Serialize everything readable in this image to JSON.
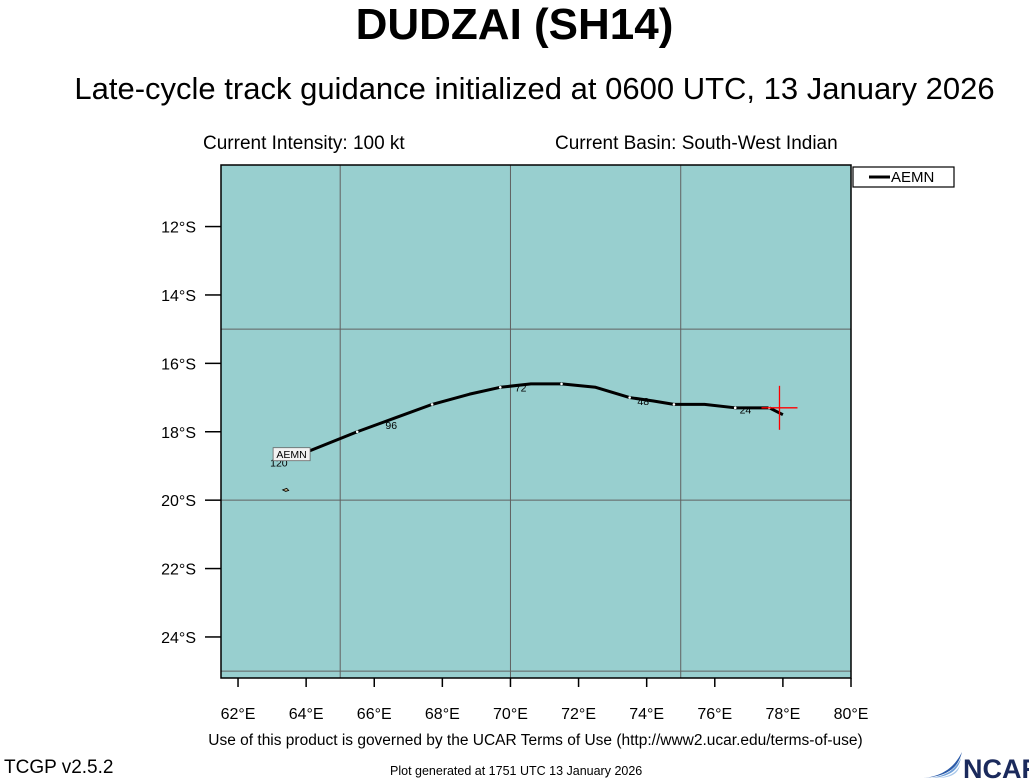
{
  "header": {
    "title": "DUDZAI (SH14)",
    "subtitle": "Late-cycle track guidance initialized at 0600 UTC, 13 January 2026",
    "intensity": "Current Intensity: 100 kt",
    "basin": "Current Basin: South-West Indian"
  },
  "footer": {
    "terms": "Use of this product is governed by the UCAR Terms of Use (http://www2.ucar.edu/terms-of-use)",
    "version": "TCGP v2.5.2",
    "generated": "Plot generated at 1751 UTC   13 January 2026",
    "logo_text": "NCAR"
  },
  "chart_data": {
    "type": "line",
    "xlim": [
      61.5,
      80
    ],
    "ylim": [
      -25.2,
      -10.2
    ],
    "xticks": [
      62,
      64,
      66,
      68,
      70,
      72,
      74,
      76,
      78,
      80
    ],
    "xtick_labels": [
      "62°E",
      "64°E",
      "66°E",
      "68°E",
      "70°E",
      "72°E",
      "74°E",
      "76°E",
      "78°E",
      "80°E"
    ],
    "yticks": [
      -12,
      -14,
      -16,
      -18,
      -20,
      -22,
      -24
    ],
    "ytick_labels": [
      "12°S",
      "14°S",
      "16°S",
      "18°S",
      "20°S",
      "22°S",
      "24°S"
    ],
    "grid_lon": [
      65,
      70,
      75
    ],
    "grid_lat": [
      -15,
      -20,
      -25
    ],
    "ocean_color": "#98cfcf",
    "grid_color": "#606060",
    "legend": {
      "position": "top-right",
      "entries": [
        {
          "name": "AEMN",
          "color": "#000000"
        }
      ]
    },
    "current_position": {
      "lon": 77.9,
      "lat": -17.3,
      "color": "#ff0000"
    },
    "island": {
      "lon": 63.4,
      "lat": -19.7
    },
    "series": [
      {
        "name": "AEMN",
        "color": "#000000",
        "points": [
          [
            78.0,
            -17.5
          ],
          [
            77.6,
            -17.3
          ],
          [
            77.2,
            -17.3
          ],
          [
            76.6,
            -17.3
          ],
          [
            75.7,
            -17.2
          ],
          [
            74.8,
            -17.2
          ],
          [
            74.2,
            -17.1
          ],
          [
            73.5,
            -17.0
          ],
          [
            72.5,
            -16.7
          ],
          [
            71.5,
            -16.6
          ],
          [
            70.6,
            -16.6
          ],
          [
            69.7,
            -16.7
          ],
          [
            68.8,
            -16.9
          ],
          [
            67.7,
            -17.2
          ],
          [
            66.6,
            -17.6
          ],
          [
            65.5,
            -18.0
          ],
          [
            64.0,
            -18.6
          ],
          [
            63.5,
            -18.8
          ]
        ],
        "hour_labels": [
          {
            "text": "24",
            "lon": 76.9,
            "lat": -17.35
          },
          {
            "text": "48",
            "lon": 73.9,
            "lat": -17.1
          },
          {
            "text": "72",
            "lon": 70.3,
            "lat": -16.7
          },
          {
            "text": "96",
            "lon": 66.5,
            "lat": -17.8
          },
          {
            "text": "120",
            "lon": 63.2,
            "lat": -18.9
          }
        ],
        "end_label": {
          "text": "AEMN",
          "lon": 63.5,
          "lat": -18.7
        }
      }
    ]
  }
}
